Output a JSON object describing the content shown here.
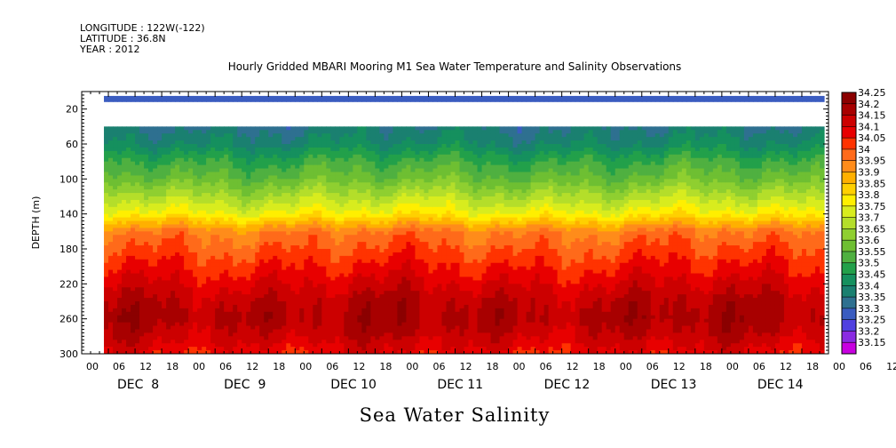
{
  "header": {
    "longitude": "LONGITUDE : 122W(-122)",
    "latitude": "LATITUDE : 36.8N",
    "year": "YEAR : 2012"
  },
  "chart_data": {
    "type": "heatmap",
    "title": "Hourly Gridded MBARI Mooring M1 Sea Water Temperature and Salinity Observations",
    "variable_label": "Sea Water Salinity",
    "ylabel": "DEPTH (m)",
    "xlabel": "",
    "y_axis": {
      "range": [
        300,
        0
      ],
      "inverted": true,
      "ticks": [
        20,
        60,
        100,
        140,
        180,
        220,
        260,
        300
      ]
    },
    "x_axis": {
      "hour_ticks": [
        "00",
        "06",
        "12",
        "18",
        "00",
        "06",
        "12",
        "18",
        "00",
        "06",
        "12",
        "18",
        "00",
        "06",
        "12",
        "18",
        "00",
        "06",
        "12",
        "18",
        "00",
        "06",
        "12",
        "18",
        "00",
        "06",
        "12",
        "18",
        "00",
        "06",
        "12",
        "18"
      ],
      "day_labels": [
        "DEC  8",
        "DEC  9",
        "DEC 10",
        "DEC 11",
        "DEC 12",
        "DEC 13",
        "DEC 14"
      ],
      "data_start": "DEC 8 05:00",
      "data_end": "DEC 14 23:00"
    },
    "colorbar": {
      "levels": [
        "34.25",
        "34.2",
        "34.15",
        "34.1",
        "34.05",
        "34",
        "33.95",
        "33.9",
        "33.85",
        "33.8",
        "33.75",
        "33.7",
        "33.65",
        "33.6",
        "33.55",
        "33.5",
        "33.45",
        "33.4",
        "33.35",
        "33.3",
        "33.25",
        "33.2",
        "33.15"
      ],
      "colors": [
        "#8b0000",
        "#a80000",
        "#cc0000",
        "#e80000",
        "#ff3300",
        "#ff6a1a",
        "#ff8c1a",
        "#ffb000",
        "#ffd000",
        "#ffef00",
        "#d8ec1e",
        "#b4de2a",
        "#8fcf30",
        "#6ebf32",
        "#4fb040",
        "#22a04a",
        "#15905e",
        "#1a8070",
        "#2e7090",
        "#3a5cc0",
        "#5040e0",
        "#8a2be2",
        "#c800e0"
      ]
    },
    "profile": {
      "depths": [
        10,
        40,
        60,
        80,
        100,
        120,
        140,
        160,
        180,
        200,
        220,
        240,
        260,
        280,
        300
      ],
      "salinity": [
        33.32,
        null,
        33.45,
        33.55,
        33.62,
        33.72,
        33.82,
        34.0,
        34.05,
        34.1,
        34.15,
        34.2,
        34.22,
        34.18,
        34.12
      ]
    }
  }
}
